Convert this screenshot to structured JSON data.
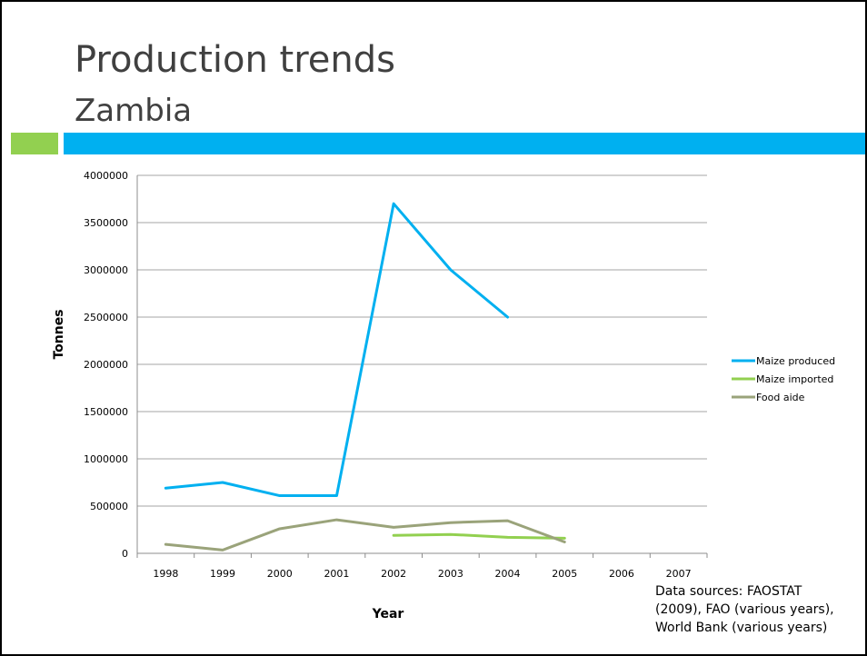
{
  "slide": {
    "title": "Production trends",
    "subtitle": "Zambia",
    "source": "Data sources: FAOSTAT\n(2009), FAO (various years),\nWorld Bank (various years)"
  },
  "colors": {
    "accent_green": "#92d050",
    "accent_blue": "#00b0f0",
    "title_text": "#404040"
  },
  "chart_data": {
    "type": "line",
    "title": "",
    "xlabel": "Year",
    "ylabel": "Tonnes",
    "categories": [
      "1998",
      "1999",
      "2000",
      "2001",
      "2002",
      "2003",
      "2004",
      "2005",
      "2006",
      "2007"
    ],
    "yticks": [
      0,
      500000,
      1000000,
      1500000,
      2000000,
      2500000,
      3000000,
      3500000,
      4000000
    ],
    "ylim": [
      0,
      4000000
    ],
    "grid": "horizontal",
    "legend_position": "right",
    "series": [
      {
        "name": "Maize produced",
        "color": "#00b0f0",
        "values": [
          690000,
          750000,
          610000,
          610000,
          3700000,
          3000000,
          2500000,
          null,
          null,
          null
        ]
      },
      {
        "name": "Maize imported",
        "color": "#92d050",
        "values": [
          null,
          null,
          null,
          null,
          190000,
          200000,
          170000,
          160000,
          null,
          null
        ]
      },
      {
        "name": "Food aide",
        "color": "#9aa37a",
        "values": [
          95000,
          35000,
          260000,
          355000,
          275000,
          325000,
          345000,
          120000,
          null,
          null
        ]
      }
    ]
  }
}
